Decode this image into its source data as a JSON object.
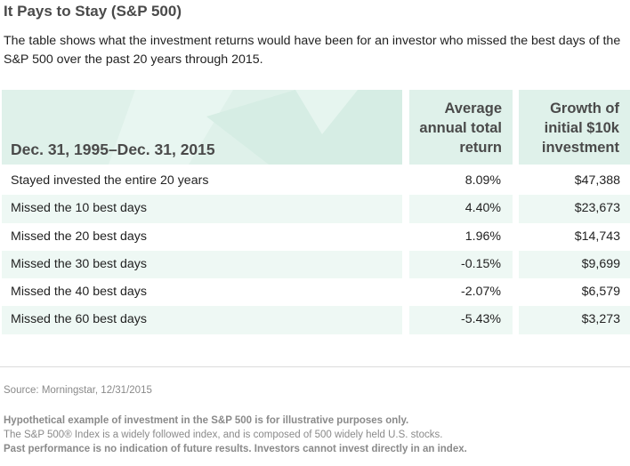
{
  "title": "It Pays to Stay (S&P 500)",
  "subtitle": "The table shows what the investment returns would have been for an investor who missed the best days of the S&P 500 over the past 20 years through 2015.",
  "table": {
    "headers": {
      "period": "Dec. 31, 1995–Dec. 31, 2015",
      "return": [
        "Average",
        "annual total",
        "return"
      ],
      "growth": [
        "Growth of",
        "initial $10k",
        "investment"
      ]
    },
    "rows": [
      {
        "label": "Stayed invested the entire 20 years",
        "return": "8.09%",
        "growth": "$47,388"
      },
      {
        "label": "Missed the 10 best days",
        "return": "4.40%",
        "growth": "$23,673"
      },
      {
        "label": "Missed the 20 best days",
        "return": "1.96%",
        "growth": "$14,743"
      },
      {
        "label": "Missed the 30 best days",
        "return": "-0.15%",
        "growth": "$9,699"
      },
      {
        "label": "Missed the 40 best days",
        "return": "-2.07%",
        "growth": "$6,579"
      },
      {
        "label": "Missed the 60 best days",
        "return": "-5.43%",
        "growth": "$3,273"
      }
    ]
  },
  "source": "Source: Morningstar, 12/31/2015",
  "footnotes": [
    "Hypothetical example of investment in the S&P 500 is for illustrative purposes only.",
    "The S&P 500® Index is a widely followed index, and is composed of 500 widely held U.S. stocks.",
    "Past performance is no indication of future results. Investors cannot invest directly in an index."
  ],
  "colors": {
    "header_bg": "#dff1ea",
    "row_shade": "#eef8f4",
    "title": "#4a4a4a",
    "footnote": "#8a8a8a"
  }
}
